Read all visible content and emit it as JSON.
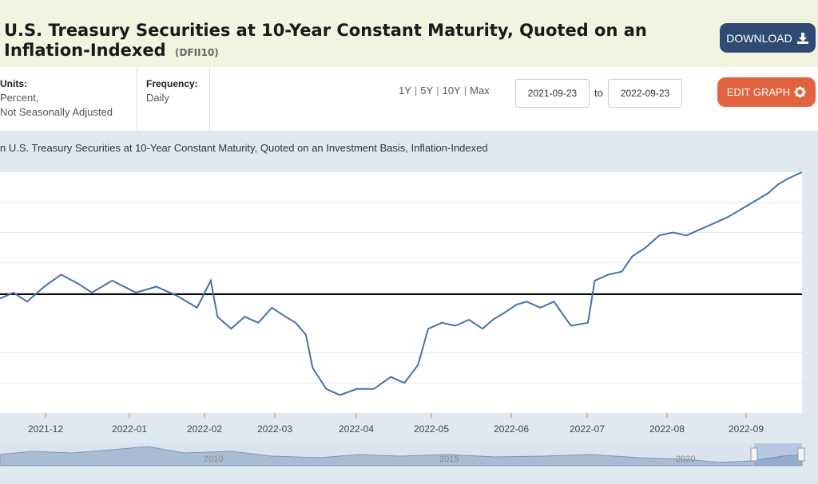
{
  "header": {
    "title": "U.S. Treasury Securities at 10-Year Constant Maturity, Quoted on an Inflation-Indexed",
    "series_id": "(DFII10)",
    "download_label": "DOWNLOAD",
    "download_icon": "download-icon"
  },
  "meta": {
    "units_label": "Units:",
    "units_line1": "Percent,",
    "units_line2": "Not Seasonally Adjusted",
    "frequency_label": "Frequency:",
    "frequency_value": "Daily"
  },
  "controls": {
    "ranges": [
      "1Y",
      "5Y",
      "10Y",
      "Max"
    ],
    "start_date": "2021-09-23",
    "to_label": "to",
    "end_date": "2022-09-23",
    "edit_label": "EDIT GRAPH",
    "edit_icon": "gear-icon"
  },
  "chart_title": "n U.S. Treasury Securities at 10-Year Constant Maturity, Quoted on an Investment Basis, Inflation-Indexed",
  "chart_data": {
    "type": "line",
    "x_tick_labels": [
      "2021-12",
      "2022-01",
      "2022-02",
      "2022-03",
      "2022-04",
      "2022-05",
      "2022-06",
      "2022-07",
      "2022-08",
      "2022-09"
    ],
    "series": [
      {
        "values": [
          [
            0,
            0.78
          ],
          [
            4,
            0.8
          ],
          [
            8,
            0.77
          ],
          [
            13,
            0.82
          ],
          [
            18,
            0.86
          ],
          [
            23,
            0.83
          ],
          [
            27,
            0.8
          ],
          [
            33,
            0.84
          ],
          [
            40,
            0.8
          ],
          [
            46,
            0.82
          ],
          [
            52,
            0.79
          ],
          [
            58,
            0.75
          ],
          [
            62,
            0.84
          ],
          [
            64,
            0.72
          ],
          [
            68,
            0.68
          ],
          [
            72,
            0.72
          ],
          [
            76,
            0.7
          ],
          [
            80,
            0.75
          ],
          [
            84,
            0.72
          ],
          [
            87,
            0.7
          ],
          [
            90,
            0.66
          ],
          [
            92,
            0.55
          ],
          [
            96,
            0.48
          ],
          [
            100,
            0.46
          ],
          [
            105,
            0.48
          ],
          [
            110,
            0.48
          ],
          [
            115,
            0.52
          ],
          [
            119,
            0.5
          ],
          [
            123,
            0.56
          ],
          [
            126,
            0.68
          ],
          [
            130,
            0.7
          ],
          [
            134,
            0.69
          ],
          [
            138,
            0.71
          ],
          [
            142,
            0.68
          ],
          [
            145,
            0.71
          ],
          [
            148,
            0.73
          ],
          [
            152,
            0.76
          ],
          [
            155,
            0.77
          ],
          [
            159,
            0.75
          ],
          [
            163,
            0.77
          ],
          [
            168,
            0.69
          ],
          [
            173,
            0.7
          ],
          [
            175,
            0.84
          ],
          [
            179,
            0.86
          ],
          [
            183,
            0.87
          ],
          [
            186,
            0.92
          ],
          [
            190,
            0.95
          ],
          [
            194,
            0.99
          ],
          [
            198,
            1.0
          ],
          [
            202,
            0.99
          ],
          [
            206,
            1.01
          ],
          [
            210,
            1.03
          ],
          [
            214,
            1.05
          ],
          [
            217,
            1.07
          ],
          [
            220,
            1.09
          ],
          [
            223,
            1.11
          ],
          [
            226,
            1.13
          ],
          [
            229,
            1.16
          ],
          [
            232,
            1.18
          ],
          [
            236,
            1.2
          ]
        ]
      }
    ]
  }
}
